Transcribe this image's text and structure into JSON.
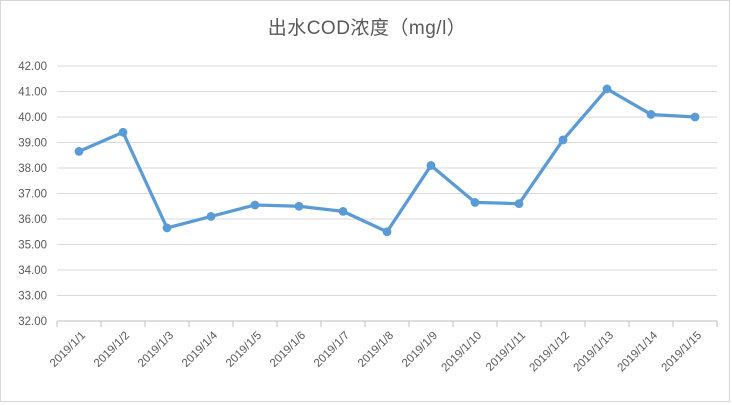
{
  "window": {
    "background": "#ffffff",
    "frame_border_color": "#d6d6d6"
  },
  "chart_data": {
    "type": "line",
    "title": "出水COD浓度（mg/l）",
    "categories": [
      "2019/1/1",
      "2019/1/2",
      "2019/1/3",
      "2019/1/4",
      "2019/1/5",
      "2019/1/6",
      "2019/1/7",
      "2019/1/8",
      "2019/1/9",
      "2019/1/10",
      "2019/1/11",
      "2019/1/12",
      "2019/1/13",
      "2019/1/14",
      "2019/1/15"
    ],
    "values": [
      38.65,
      39.4,
      35.65,
      36.1,
      36.55,
      36.5,
      36.3,
      35.5,
      38.1,
      36.65,
      36.6,
      39.1,
      41.1,
      40.1,
      40.0
    ],
    "xlabel": "",
    "ylabel": "",
    "ylim": [
      32,
      42
    ],
    "ytick_step": 1,
    "ytick_decimals": 2,
    "x_label_rotation_deg": 45,
    "grid": true,
    "legend": "none",
    "marker": "circle",
    "colors": {
      "series": "#5b9bd5",
      "gridline": "#d9d9d9",
      "axis_line": "#bfbfbf",
      "tick_color": "#bfbfbf",
      "tick_label": "#595959",
      "title": "#595959"
    }
  }
}
